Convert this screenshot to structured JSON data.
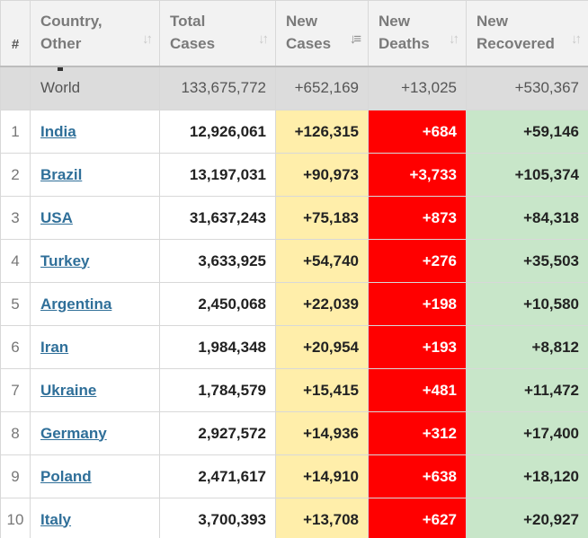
{
  "headers": {
    "rank": "#",
    "country_line1": "Country,",
    "country_line2": "Other",
    "total_line1": "Total",
    "total_line2": "Cases",
    "new_cases_line1": "New",
    "new_cases_line2": "Cases",
    "new_deaths_line1": "New",
    "new_deaths_line2": "Deaths",
    "new_recovered_line1": "New",
    "new_recovered_line2": "Recovered"
  },
  "icons": {
    "sort_inactive": "sort-updown-icon",
    "sort_active": "sort-descending-icon"
  },
  "world": {
    "country": "World",
    "total_cases": "133,675,772",
    "new_cases": "+652,169",
    "new_deaths": "+13,025",
    "new_recovered": "+530,367"
  },
  "rows": [
    {
      "rank": "1",
      "country": "India",
      "total_cases": "12,926,061",
      "new_cases": "+126,315",
      "new_deaths": "+684",
      "new_recovered": "+59,146"
    },
    {
      "rank": "2",
      "country": "Brazil",
      "total_cases": "13,197,031",
      "new_cases": "+90,973",
      "new_deaths": "+3,733",
      "new_recovered": "+105,374"
    },
    {
      "rank": "3",
      "country": "USA",
      "total_cases": "31,637,243",
      "new_cases": "+75,183",
      "new_deaths": "+873",
      "new_recovered": "+84,318"
    },
    {
      "rank": "4",
      "country": "Turkey",
      "total_cases": "3,633,925",
      "new_cases": "+54,740",
      "new_deaths": "+276",
      "new_recovered": "+35,503"
    },
    {
      "rank": "5",
      "country": "Argentina",
      "total_cases": "2,450,068",
      "new_cases": "+22,039",
      "new_deaths": "+198",
      "new_recovered": "+10,580"
    },
    {
      "rank": "6",
      "country": "Iran",
      "total_cases": "1,984,348",
      "new_cases": "+20,954",
      "new_deaths": "+193",
      "new_recovered": "+8,812"
    },
    {
      "rank": "7",
      "country": "Ukraine",
      "total_cases": "1,784,579",
      "new_cases": "+15,415",
      "new_deaths": "+481",
      "new_recovered": "+11,472"
    },
    {
      "rank": "8",
      "country": "Germany",
      "total_cases": "2,927,572",
      "new_cases": "+14,936",
      "new_deaths": "+312",
      "new_recovered": "+17,400"
    },
    {
      "rank": "9",
      "country": "Poland",
      "total_cases": "2,471,617",
      "new_cases": "+14,910",
      "new_deaths": "+638",
      "new_recovered": "+18,120"
    },
    {
      "rank": "10",
      "country": "Italy",
      "total_cases": "3,700,393",
      "new_cases": "+13,708",
      "new_deaths": "+627",
      "new_recovered": "+20,927"
    }
  ],
  "colors": {
    "header_bg": "#f2f2f2",
    "world_row_bg": "#dcdcdc",
    "new_cases_bg": "#ffeeaa",
    "new_deaths_bg": "#ff0000",
    "new_recovered_bg": "#c8e6c9",
    "country_link": "#2f6f99"
  }
}
